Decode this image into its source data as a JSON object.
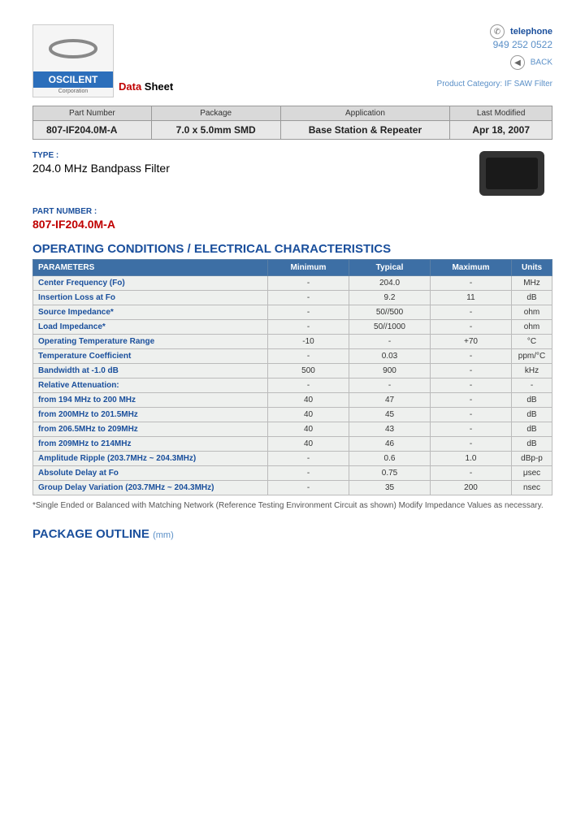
{
  "brand": {
    "name": "OSCILENT",
    "sub": "Corporation"
  },
  "data_sheet": {
    "red": "Data",
    "black": " Sheet"
  },
  "header_right": {
    "tel_label": "telephone",
    "tel_num": "949 252 0522",
    "back": "BACK",
    "prod_cat": "Product Category: IF SAW Filter"
  },
  "info": {
    "headers": [
      "Part Number",
      "Package",
      "Application",
      "Last Modified"
    ],
    "row": [
      "807-IF204.0M-A",
      "7.0 x 5.0mm SMD",
      "Base Station & Repeater",
      "Apr 18, 2007"
    ]
  },
  "type": {
    "label": "TYPE :",
    "value": "204.0 MHz Bandpass Filter"
  },
  "pn": {
    "label": "PART NUMBER :",
    "value": "807-IF204.0M-A"
  },
  "spec": {
    "title": "OPERATING CONDITIONS / ELECTRICAL CHARACTERISTICS",
    "headers": [
      "PARAMETERS",
      "Minimum",
      "Typical",
      "Maximum",
      "Units"
    ],
    "rows": [
      {
        "p": "Center Frequency (Fo)",
        "min": "-",
        "typ": "204.0",
        "max": "-",
        "u": "MHz"
      },
      {
        "p": "Insertion Loss at Fo",
        "min": "-",
        "typ": "9.2",
        "max": "11",
        "u": "dB"
      },
      {
        "p": "Source Impedance*",
        "min": "-",
        "typ": "50//500",
        "max": "-",
        "u": "ohm"
      },
      {
        "p": "Load Impedance*",
        "min": "-",
        "typ": "50//1000",
        "max": "-",
        "u": "ohm"
      },
      {
        "p": "Operating Temperature Range",
        "min": "-10",
        "typ": "-",
        "max": "+70",
        "u": "°C"
      },
      {
        "p": "Temperature Coefficient",
        "min": "-",
        "typ": "0.03",
        "max": "-",
        "u": "ppm/°C"
      },
      {
        "p": "Bandwidth at -1.0 dB",
        "min": "500",
        "typ": "900",
        "max": "-",
        "u": "kHz"
      },
      {
        "p": "Relative Attenuation:",
        "min": "-",
        "typ": "-",
        "max": "-",
        "u": "-"
      },
      {
        "p": "from 194 MHz to 200 MHz",
        "min": "40",
        "typ": "47",
        "max": "-",
        "u": "dB"
      },
      {
        "p": "from 200MHz to 201.5MHz",
        "min": "40",
        "typ": "45",
        "max": "-",
        "u": "dB"
      },
      {
        "p": "from 206.5MHz to 209MHz",
        "min": "40",
        "typ": "43",
        "max": "-",
        "u": "dB"
      },
      {
        "p": "from 209MHz to 214MHz",
        "min": "40",
        "typ": "46",
        "max": "-",
        "u": "dB"
      },
      {
        "p": "Amplitude Ripple (203.7MHz ~ 204.3MHz)",
        "min": "-",
        "typ": "0.6",
        "max": "1.0",
        "u": "dBp-p"
      },
      {
        "p": "Absolute Delay at Fo",
        "min": "-",
        "typ": "0.75",
        "max": "-",
        "u": "μsec"
      },
      {
        "p": "Group Delay Variation (203.7MHz ~ 204.3MHz)",
        "min": "-",
        "typ": "35",
        "max": "200",
        "u": "nsec"
      }
    ]
  },
  "footnote": "*Single Ended or Balanced with Matching Network (Reference Testing Environment Circuit as shown) Modify Impedance Values as necessary.",
  "pkg": {
    "title": "PACKAGE OUTLINE",
    "unit": "(mm)"
  }
}
